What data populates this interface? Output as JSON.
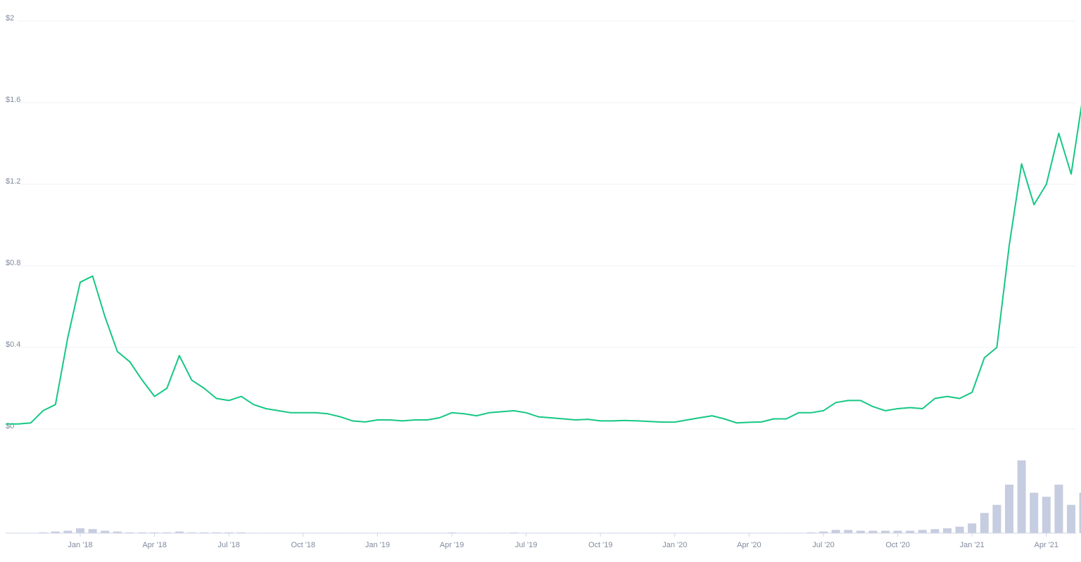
{
  "chart_data": {
    "type": "line",
    "x": [
      null,
      null,
      null,
      null,
      null,
      null,
      "Jan '18",
      null,
      null,
      null,
      null,
      null,
      "Apr '18",
      null,
      null,
      null,
      null,
      null,
      "Jul '18",
      null,
      null,
      null,
      null,
      null,
      "Oct '18",
      null,
      null,
      null,
      null,
      null,
      "Jan '19",
      null,
      null,
      null,
      null,
      null,
      "Apr '19",
      null,
      null,
      null,
      null,
      null,
      "Jul '19",
      null,
      null,
      null,
      null,
      null,
      "Oct '19",
      null,
      null,
      null,
      null,
      null,
      "Jan '20",
      null,
      null,
      null,
      null,
      null,
      "Apr '20",
      null,
      null,
      null,
      null,
      null,
      "Jul '20",
      null,
      null,
      null,
      null,
      null,
      "Oct '20",
      null,
      null,
      null,
      null,
      null,
      "Jan '21",
      null,
      null,
      null,
      null,
      null,
      "Apr '21",
      null,
      null,
      null
    ],
    "series": [
      {
        "color": "#16c784",
        "values": [
          0.025,
          0.025,
          0.03,
          0.09,
          0.12,
          0.45,
          0.72,
          0.75,
          0.55,
          0.38,
          0.33,
          0.24,
          0.16,
          0.2,
          0.36,
          0.24,
          0.2,
          0.15,
          0.14,
          0.16,
          0.12,
          0.1,
          0.09,
          0.08,
          0.08,
          0.08,
          0.075,
          0.06,
          0.04,
          0.035,
          0.045,
          0.045,
          0.04,
          0.045,
          0.045,
          0.055,
          0.08,
          0.075,
          0.065,
          0.08,
          0.085,
          0.09,
          0.08,
          0.06,
          0.055,
          0.05,
          0.045,
          0.048,
          0.04,
          0.04,
          0.042,
          0.04,
          0.037,
          0.034,
          0.034,
          0.045,
          0.055,
          0.065,
          0.05,
          0.03,
          0.033,
          0.035,
          0.05,
          0.05,
          0.08,
          0.08,
          0.09,
          0.13,
          0.14,
          0.14,
          0.11,
          0.09,
          0.1,
          0.105,
          0.1,
          0.15,
          0.16,
          0.15,
          0.18,
          0.35,
          0.4,
          0.9,
          1.3,
          1.1,
          1.2,
          1.45,
          1.25,
          1.65
        ]
      }
    ],
    "volume": {
      "color": "#c7cde0",
      "values": [
        0,
        0,
        0,
        0.1,
        0.2,
        0.3,
        0.6,
        0.5,
        0.3,
        0.2,
        0.1,
        0.1,
        0.1,
        0.1,
        0.2,
        0.1,
        0.1,
        0.1,
        0.1,
        0.1,
        0.05,
        0.05,
        0.05,
        0.05,
        0.05,
        0.05,
        0.05,
        0.05,
        0.05,
        0.05,
        0.05,
        0.05,
        0.05,
        0.05,
        0.05,
        0.05,
        0.08,
        0.05,
        0.05,
        0.05,
        0.05,
        0.08,
        0.05,
        0.05,
        0.05,
        0.05,
        0.05,
        0.05,
        0.05,
        0.05,
        0.05,
        0.05,
        0.05,
        0.05,
        0.05,
        0.05,
        0.05,
        0.05,
        0.05,
        0.05,
        0.05,
        0.05,
        0.05,
        0.05,
        0.05,
        0.1,
        0.2,
        0.4,
        0.4,
        0.3,
        0.3,
        0.3,
        0.3,
        0.3,
        0.4,
        0.5,
        0.6,
        0.8,
        1.2,
        2.5,
        3.5,
        6,
        9,
        5,
        4.5,
        6,
        3.5,
        5
      ]
    },
    "volume_lim": [
      0,
      10
    ],
    "ylim": [
      0,
      2
    ],
    "yticks": [
      {
        "value": 0,
        "label": "$0"
      },
      {
        "value": 0.4,
        "label": "$0.4"
      },
      {
        "value": 0.8,
        "label": "$0.8"
      },
      {
        "value": 1.2,
        "label": "$1.2"
      },
      {
        "value": 1.6,
        "label": "$1.6"
      },
      {
        "value": 2,
        "label": "$2"
      }
    ],
    "grid": true
  }
}
